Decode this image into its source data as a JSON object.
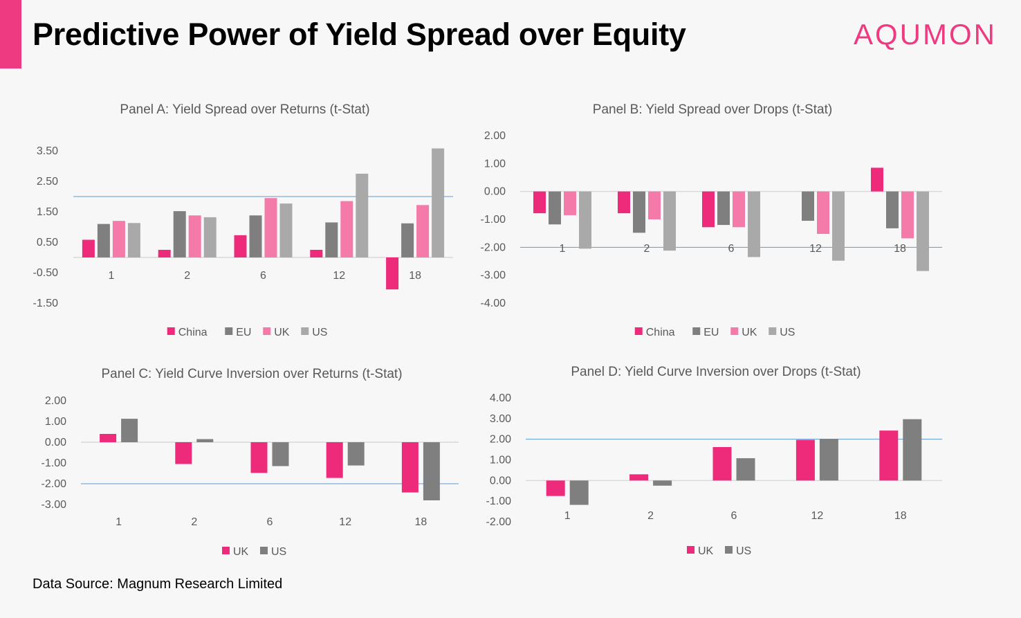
{
  "header": {
    "title": "Predictive Power of Yield Spread over Equity",
    "logo_text": "AQUMON"
  },
  "footer": {
    "source": "Data Source: Magnum Research Limited"
  },
  "colors": {
    "China": "#ee2b7b",
    "EU": "#7f7f7f",
    "UK": "#f47aa9",
    "US": "#a9a9a9",
    "UK_dark": "#ee2b7b",
    "US_dark": "#7f7f7f",
    "threshold_line": "#5b9bd5",
    "axis_line": "#d9d9d9",
    "label_text": "#595959"
  },
  "chart_data": [
    {
      "id": "panelA",
      "type": "bar",
      "title": "Panel A: Yield Spread over Returns (t-Stat)",
      "categories": [
        "1",
        "2",
        "6",
        "12",
        "18"
      ],
      "yticks": [
        "3.50",
        "2.50",
        "1.50",
        "0.50",
        "-0.50",
        "-1.50"
      ],
      "ylim": [
        -1.5,
        3.5
      ],
      "threshold": 2.0,
      "series": [
        {
          "name": "China",
          "values": [
            0.58,
            0.25,
            0.73,
            0.25,
            -1.05
          ]
        },
        {
          "name": "EU",
          "values": [
            1.1,
            1.52,
            1.38,
            1.15,
            1.12
          ]
        },
        {
          "name": "UK",
          "values": [
            1.2,
            1.38,
            1.95,
            1.85,
            1.72
          ]
        },
        {
          "name": "US",
          "values": [
            1.13,
            1.32,
            1.77,
            2.75,
            3.58
          ]
        }
      ],
      "legend": [
        "China",
        "EU",
        "UK",
        "US"
      ],
      "legend_position": "bottom"
    },
    {
      "id": "panelB",
      "type": "bar",
      "title": "Panel B: Yield Spread over Drops (t-Stat)",
      "categories": [
        "1",
        "2",
        "6",
        "12",
        "18"
      ],
      "yticks": [
        "2.00",
        "1.00",
        "0.00",
        "-1.00",
        "-2.00",
        "-3.00",
        "-4.00"
      ],
      "ylim": [
        -4,
        2
      ],
      "threshold": -2.0,
      "series": [
        {
          "name": "China",
          "values": [
            -0.78,
            -0.78,
            -1.28,
            0.0,
            0.85
          ]
        },
        {
          "name": "EU",
          "values": [
            -1.18,
            -1.48,
            -1.2,
            -1.05,
            -1.32
          ]
        },
        {
          "name": "UK",
          "values": [
            -0.85,
            -1.0,
            -1.28,
            -1.52,
            -1.68
          ]
        },
        {
          "name": "US",
          "values": [
            -2.05,
            -2.12,
            -2.35,
            -2.48,
            -2.85
          ]
        }
      ],
      "legend": [
        "China",
        "EU",
        "UK",
        "US"
      ],
      "legend_position": "bottom"
    },
    {
      "id": "panelC",
      "type": "bar",
      "title": "Panel C: Yield Curve Inversion over Returns (t-Stat)",
      "categories": [
        "1",
        "2",
        "6",
        "12",
        "18"
      ],
      "yticks": [
        "2.00",
        "1.00",
        "0.00",
        "-1.00",
        "-2.00",
        "-3.00"
      ],
      "ylim": [
        -3,
        2
      ],
      "threshold": -2.0,
      "series": [
        {
          "name": "UK",
          "values": [
            0.4,
            -1.05,
            -1.48,
            -1.72,
            -2.42
          ]
        },
        {
          "name": "US",
          "values": [
            1.13,
            0.15,
            -1.15,
            -1.12,
            -2.8
          ]
        }
      ],
      "legend": [
        "UK",
        "US"
      ],
      "legend_position": "bottom"
    },
    {
      "id": "panelD",
      "type": "bar",
      "title": "Panel D: Yield Curve Inversion over Drops (t-Stat)",
      "categories": [
        "1",
        "2",
        "6",
        "12",
        "18"
      ],
      "yticks": [
        "4.00",
        "3.00",
        "2.00",
        "1.00",
        "0.00",
        "-1.00",
        "-2.00"
      ],
      "ylim": [
        -2,
        4
      ],
      "threshold": 2.0,
      "series": [
        {
          "name": "UK",
          "values": [
            -0.75,
            0.3,
            1.62,
            1.97,
            2.42
          ]
        },
        {
          "name": "US",
          "values": [
            -1.18,
            -0.25,
            1.08,
            2.02,
            2.97
          ]
        }
      ],
      "legend": [
        "UK",
        "US"
      ],
      "legend_position": "bottom"
    }
  ]
}
